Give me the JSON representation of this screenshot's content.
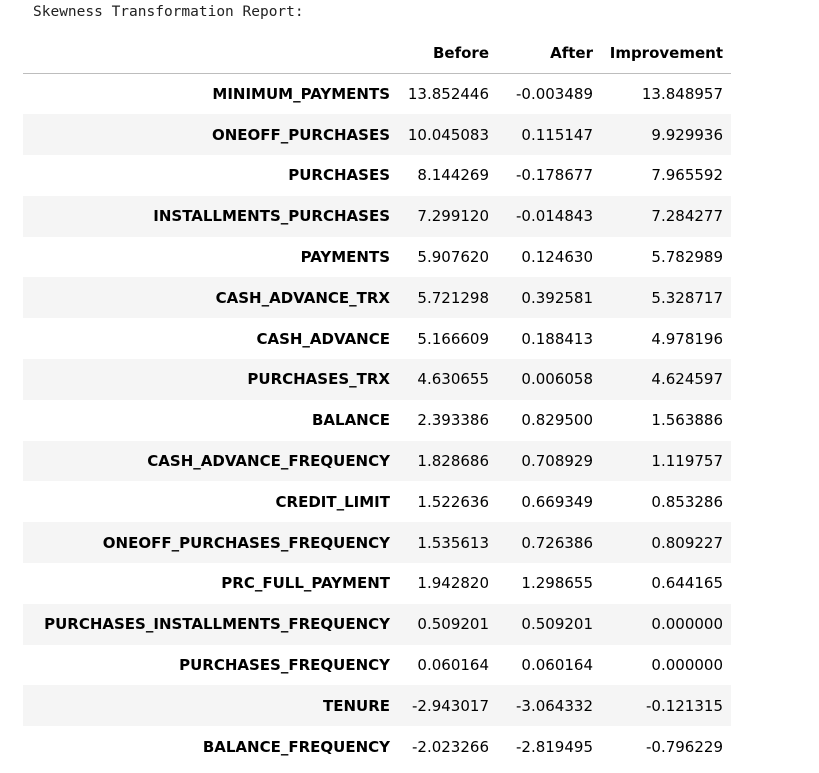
{
  "output": {
    "title": "Skewness Transformation Report:"
  },
  "table": {
    "index_header": "",
    "columns": [
      "Before",
      "After",
      "Improvement"
    ],
    "rows": [
      {
        "name": "MINIMUM_PAYMENTS",
        "before": "13.852446",
        "after": "-0.003489",
        "improvement": "13.848957"
      },
      {
        "name": "ONEOFF_PURCHASES",
        "before": "10.045083",
        "after": "0.115147",
        "improvement": "9.929936"
      },
      {
        "name": "PURCHASES",
        "before": "8.144269",
        "after": "-0.178677",
        "improvement": "7.965592"
      },
      {
        "name": "INSTALLMENTS_PURCHASES",
        "before": "7.299120",
        "after": "-0.014843",
        "improvement": "7.284277"
      },
      {
        "name": "PAYMENTS",
        "before": "5.907620",
        "after": "0.124630",
        "improvement": "5.782989"
      },
      {
        "name": "CASH_ADVANCE_TRX",
        "before": "5.721298",
        "after": "0.392581",
        "improvement": "5.328717"
      },
      {
        "name": "CASH_ADVANCE",
        "before": "5.166609",
        "after": "0.188413",
        "improvement": "4.978196"
      },
      {
        "name": "PURCHASES_TRX",
        "before": "4.630655",
        "after": "0.006058",
        "improvement": "4.624597"
      },
      {
        "name": "BALANCE",
        "before": "2.393386",
        "after": "0.829500",
        "improvement": "1.563886"
      },
      {
        "name": "CASH_ADVANCE_FREQUENCY",
        "before": "1.828686",
        "after": "0.708929",
        "improvement": "1.119757"
      },
      {
        "name": "CREDIT_LIMIT",
        "before": "1.522636",
        "after": "0.669349",
        "improvement": "0.853286"
      },
      {
        "name": "ONEOFF_PURCHASES_FREQUENCY",
        "before": "1.535613",
        "after": "0.726386",
        "improvement": "0.809227"
      },
      {
        "name": "PRC_FULL_PAYMENT",
        "before": "1.942820",
        "after": "1.298655",
        "improvement": "0.644165"
      },
      {
        "name": "PURCHASES_INSTALLMENTS_FREQUENCY",
        "before": "0.509201",
        "after": "0.509201",
        "improvement": "0.000000"
      },
      {
        "name": "PURCHASES_FREQUENCY",
        "before": "0.060164",
        "after": "0.060164",
        "improvement": "0.000000"
      },
      {
        "name": "TENURE",
        "before": "-2.943017",
        "after": "-3.064332",
        "improvement": "-0.121315"
      },
      {
        "name": "BALANCE_FREQUENCY",
        "before": "-2.023266",
        "after": "-2.819495",
        "improvement": "-0.796229"
      }
    ]
  }
}
